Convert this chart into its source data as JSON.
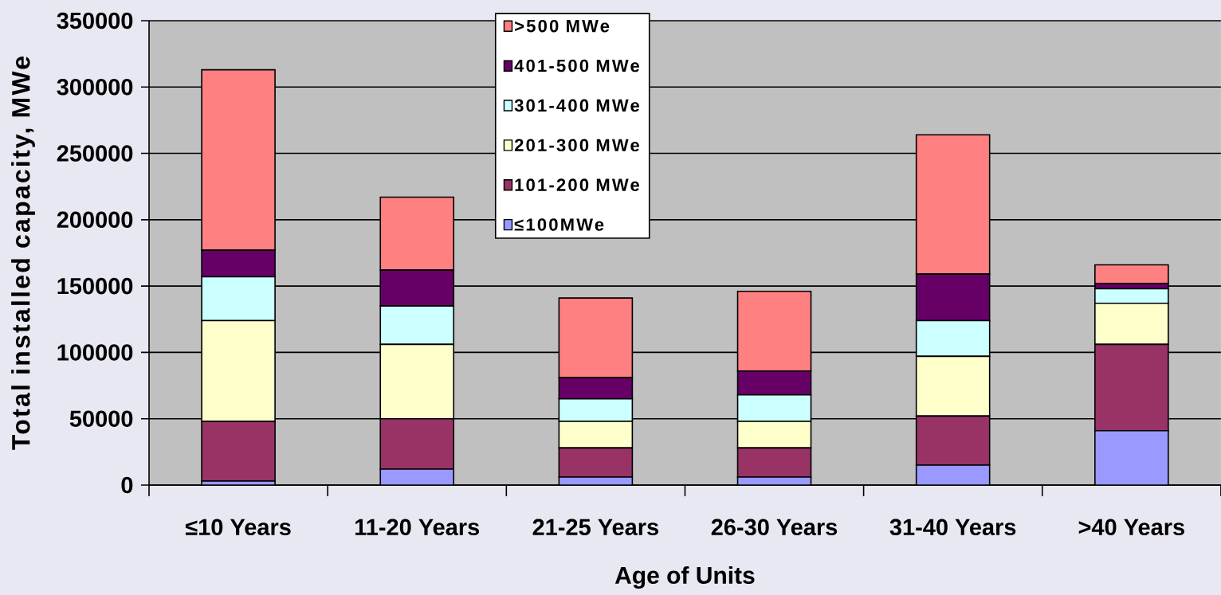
{
  "chart_data": {
    "type": "bar",
    "stacked": true,
    "xlabel": "Age of Units",
    "ylabel": "Total installed capacity, MWe",
    "categories": [
      "≤10 Years",
      "11-20 Years",
      "21-25 Years",
      "26-30 Years",
      "31-40 Years",
      ">40 Years"
    ],
    "series": [
      {
        "name": "≤100MWe",
        "color": "#9999ff",
        "values": [
          3000,
          12000,
          6000,
          6000,
          15000,
          41000
        ]
      },
      {
        "name": "101-200 MWe",
        "color": "#993366",
        "values": [
          45000,
          38000,
          22000,
          22000,
          37000,
          65000
        ]
      },
      {
        "name": "201-300 MWe",
        "color": "#ffffcc",
        "values": [
          76000,
          56000,
          20000,
          20000,
          45000,
          31000
        ]
      },
      {
        "name": "301-400 MWe",
        "color": "#ccffff",
        "values": [
          33000,
          29000,
          17000,
          20000,
          27000,
          11000
        ]
      },
      {
        "name": "401-500 MWe",
        "color": "#660066",
        "values": [
          20000,
          27000,
          16000,
          18000,
          35000,
          4000
        ]
      },
      {
        "name": ">500 MWe",
        "color": "#ff8080",
        "values": [
          136000,
          55000,
          60000,
          60000,
          105000,
          14000
        ]
      }
    ],
    "ylim": [
      0,
      350000
    ],
    "yticks": [
      0,
      50000,
      100000,
      150000,
      200000,
      250000,
      300000,
      350000
    ],
    "grid": "y",
    "legend": "top"
  }
}
